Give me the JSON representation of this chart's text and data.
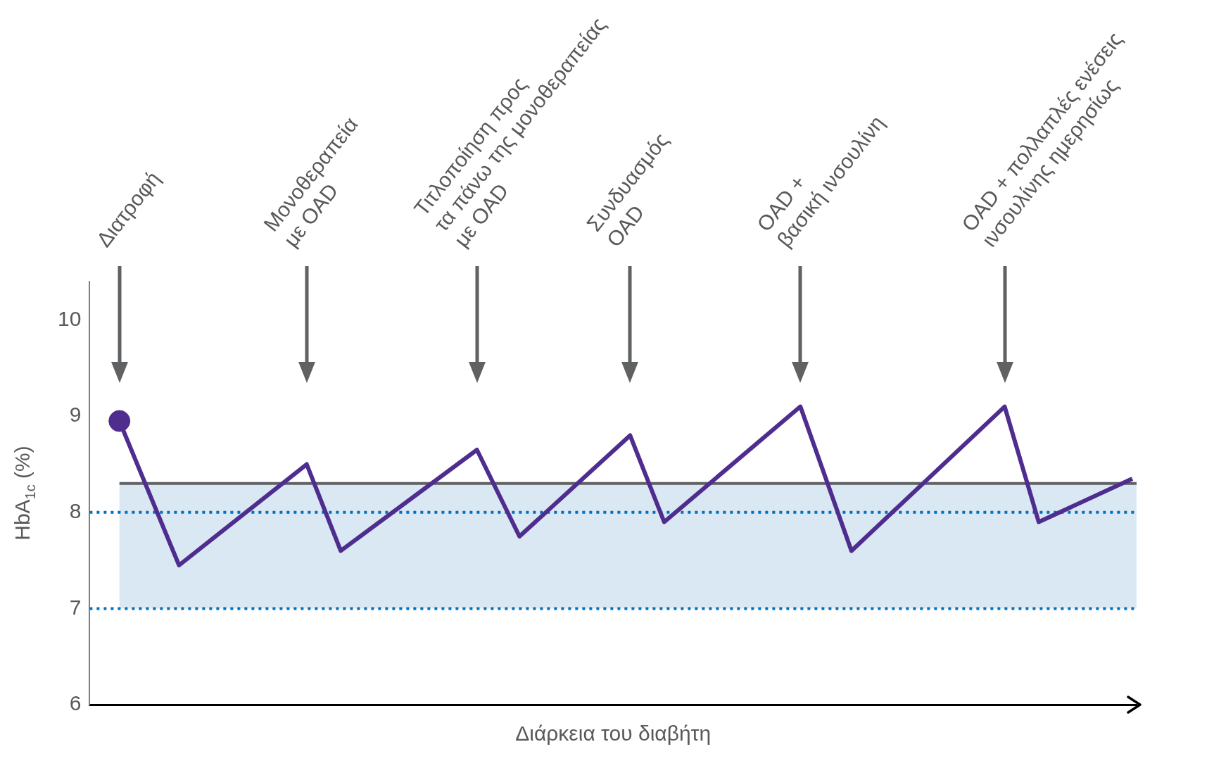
{
  "chart_data": {
    "type": "line",
    "xlabel": "Διάρκεια του διαβήτη",
    "ylabel": "HbA$_{1c}$ (%)",
    "categories": [
      null,
      null,
      null,
      null,
      null,
      null,
      null,
      null,
      null,
      null,
      null,
      null,
      null,
      null,
      null,
      null,
      null,
      null,
      null,
      null,
      null,
      null,
      null,
      null,
      null,
      null,
      null,
      null,
      null,
      null,
      null,
      null,
      null,
      null,
      null,
      null,
      null,
      null,
      null,
      null,
      null,
      null,
      null,
      null,
      null,
      null,
      null,
      null,
      null,
      null,
      null,
      null,
      null,
      null,
      null,
      null,
      null,
      null,
      null,
      null,
      null,
      null,
      null,
      null,
      null,
      null,
      null,
      null,
      null,
      null,
      null,
      null,
      null,
      null,
      null,
      null,
      null,
      null,
      null,
      null,
      null,
      null,
      null,
      null,
      null,
      null,
      null,
      null,
      null,
      null,
      null,
      null,
      null,
      null,
      null,
      null,
      null,
      null,
      null,
      null,
      null,
      null,
      null,
      null,
      null,
      null,
      null,
      null,
      null,
      null,
      null,
      null,
      null,
      null,
      null,
      null,
      null,
      null,
      null,
      null,
      null,
      null,
      null
    ],
    "series": [
      {
        "type": "line",
        "color": "#4f2d8f",
        "marker": "none",
        "values": [
          null,
          null,
          null,
          8.95,
          null,
          null,
          null,
          null,
          null,
          null,
          7.45,
          null,
          null,
          null,
          null,
          null,
          null,
          null,
          null,
          null,
          null,
          null,
          null,
          null,
          null,
          8.5,
          null,
          null,
          null,
          7.6,
          null,
          null,
          null,
          null,
          null,
          null,
          null,
          null,
          null,
          null,
          null,
          null,
          null,
          null,
          null,
          8.65,
          null,
          null,
          null,
          null,
          7.75,
          null,
          null,
          null,
          null,
          null,
          null,
          null,
          null,
          null,
          null,
          null,
          null,
          8.8,
          null,
          null,
          null,
          7.9,
          null,
          null,
          null,
          null,
          null,
          null,
          null,
          null,
          null,
          null,
          null,
          null,
          null,
          null,
          null,
          9.1,
          null,
          null,
          null,
          null,
          null,
          7.6,
          null,
          null,
          null,
          null,
          null,
          null,
          null,
          null,
          null,
          null,
          null,
          null,
          null,
          null,
          null,
          null,
          null,
          9.1,
          null,
          null,
          null,
          7.9,
          null,
          null,
          null,
          null,
          null,
          null,
          null,
          null,
          null,
          null,
          8.35
        ]
      },
      {
        "type": "scatter",
        "marker": "circle",
        "color": "#4f2d8f",
        "values": [
          null,
          null,
          null,
          8.95,
          null,
          null,
          null,
          null,
          null,
          null,
          null,
          null,
          null,
          null,
          null,
          null,
          null,
          null,
          null,
          null,
          null,
          null,
          null,
          null,
          null,
          null,
          null,
          null,
          null,
          null,
          null,
          null,
          null,
          null,
          null,
          null,
          null,
          null,
          null,
          null,
          null,
          null,
          null,
          null,
          null,
          null,
          null,
          null,
          null,
          null,
          null,
          null,
          null,
          null,
          null,
          null,
          null,
          null,
          null,
          null,
          null,
          null,
          null,
          null,
          null,
          null,
          null,
          null,
          null,
          null,
          null,
          null,
          null,
          null,
          null,
          null,
          null,
          null,
          null,
          null,
          null,
          null,
          null,
          null,
          null,
          null,
          null,
          null,
          null,
          null,
          null,
          null,
          null,
          null,
          null,
          null,
          null,
          null,
          null,
          null,
          null,
          null,
          null,
          null,
          null,
          null,
          null,
          null,
          null,
          null,
          null,
          null,
          null,
          null,
          null,
          null,
          null,
          null,
          null,
          null,
          null,
          null,
          null
        ]
      }
    ],
    "ylim": [
      6,
      10.4
    ],
    "yticks": [
      6,
      7,
      8,
      9,
      10
    ],
    "grid": false,
    "legend": false,
    "tick_labels": "y",
    "line_style": "solid",
    "bands": [
      {
        "axis": "y",
        "from": 7,
        "to": 8.3,
        "color": "#dae8f3"
      }
    ],
    "ref_lines": [
      {
        "axis": "y",
        "value": 8.3,
        "color": "#5f6163",
        "line_style": "solid"
      },
      {
        "axis": "y",
        "value": 8,
        "color": "#0070c0",
        "line_style": "dotted"
      },
      {
        "axis": "y",
        "value": 7,
        "color": "#0070c0",
        "line_style": "dotted"
      }
    ],
    "annotations": [
      "Διατροφή",
      "Μονοθεραπεία\nμε OAD",
      "Τιτλοποίηση προς\nτα πάνω της μονοθεραπείας\nμε OAD",
      "Συνδυασμός\nOAD",
      "OAD +\nβασική ινσουλίνη",
      "OAD + πολλαπλές ενέσεις\nινσουλίνης ημερησίως"
    ]
  }
}
